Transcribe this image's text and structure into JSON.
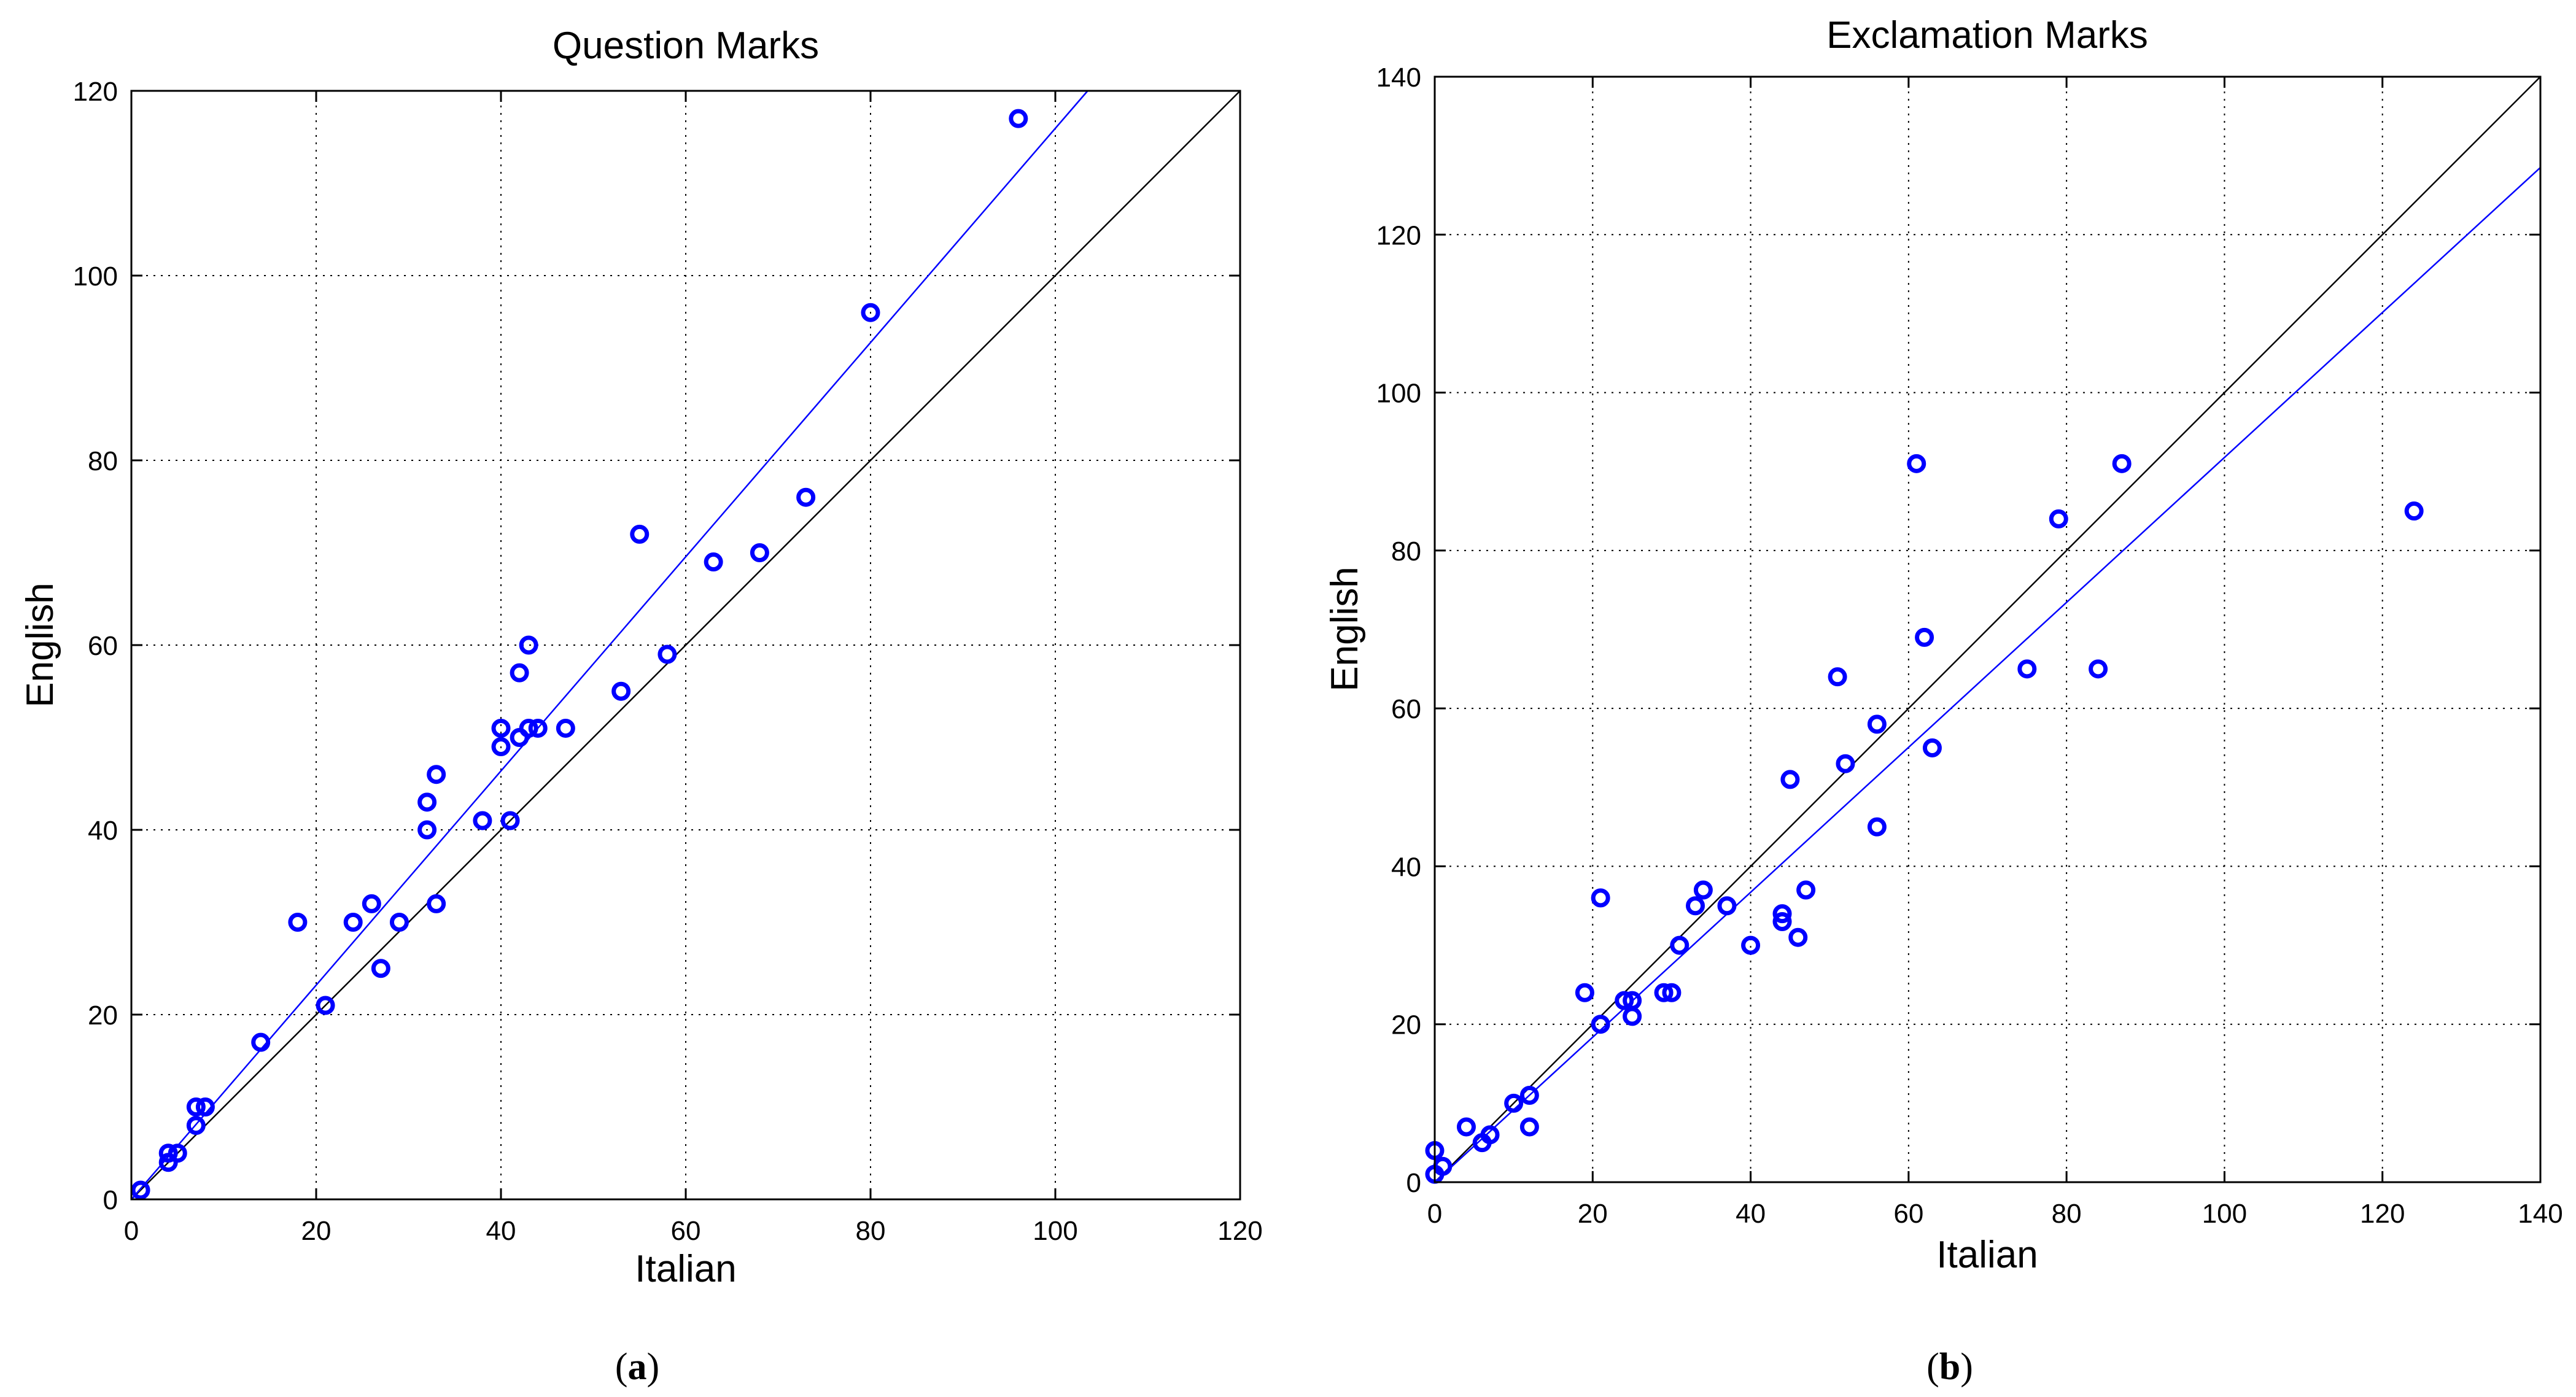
{
  "colors": {
    "points": "#0000ff",
    "fit": "#0000ff",
    "identity": "#000000"
  },
  "panels": [
    {
      "caption": {
        "open": "(",
        "letter": "a",
        "close": ")"
      },
      "chart_data": {
        "type": "scatter",
        "title": "Question Marks",
        "xlabel": "Italian",
        "ylabel": "English",
        "xlim": [
          0,
          120
        ],
        "ylim": [
          0,
          120
        ],
        "xticks": [
          0,
          20,
          40,
          60,
          80,
          100,
          120
        ],
        "yticks": [
          0,
          20,
          40,
          60,
          80,
          100,
          120
        ],
        "grid": true,
        "series": [
          {
            "name": "data",
            "marker": "circle",
            "x": [
              1,
              4,
              4,
              5,
              7,
              7,
              8,
              14,
              18,
              21,
              24,
              26,
              27,
              29,
              32,
              32,
              33,
              33,
              38,
              40,
              40,
              41,
              42,
              42,
              43,
              43,
              44,
              47,
              53,
              55,
              58,
              63,
              68,
              73,
              80,
              96
            ],
            "y": [
              1,
              4,
              5,
              5,
              8,
              10,
              10,
              17,
              30,
              21,
              30,
              32,
              25,
              30,
              40,
              43,
              46,
              32,
              41,
              49,
              51,
              41,
              50,
              57,
              51,
              60,
              51,
              51,
              55,
              72,
              59,
              69,
              70,
              76,
              96,
              117
            ]
          }
        ],
        "lines": [
          {
            "name": "identity",
            "x": [
              0,
              120
            ],
            "y": [
              0,
              120
            ]
          },
          {
            "name": "fit",
            "x": [
              0,
              103.5
            ],
            "y": [
              0,
              120
            ]
          }
        ]
      }
    },
    {
      "caption": {
        "open": "(",
        "letter": "b",
        "close": ")"
      },
      "chart_data": {
        "type": "scatter",
        "title": "Exclamation Marks",
        "xlabel": "Italian",
        "ylabel": "English",
        "xlim": [
          0,
          140
        ],
        "ylim": [
          0,
          140
        ],
        "xticks": [
          0,
          20,
          40,
          60,
          80,
          100,
          120,
          140
        ],
        "yticks": [
          0,
          20,
          40,
          60,
          80,
          100,
          120,
          140
        ],
        "grid": true,
        "series": [
          {
            "name": "data",
            "marker": "circle",
            "x": [
              0,
              0,
              1,
              4,
              6,
              7,
              10,
              12,
              12,
              19,
              21,
              21,
              24,
              25,
              25,
              29,
              30,
              31,
              33,
              34,
              37,
              40,
              44,
              44,
              45,
              46,
              47,
              51,
              52,
              56,
              56,
              61,
              62,
              63,
              75,
              79,
              84,
              87,
              124
            ],
            "y": [
              1,
              4,
              2,
              7,
              5,
              6,
              10,
              7,
              11,
              24,
              20,
              36,
              23,
              21,
              23,
              24,
              24,
              30,
              35,
              37,
              35,
              30,
              33,
              34,
              51,
              31,
              37,
              64,
              53,
              45,
              58,
              91,
              69,
              55,
              65,
              84,
              65,
              91,
              85
            ]
          }
        ],
        "lines": [
          {
            "name": "identity",
            "x": [
              0,
              140
            ],
            "y": [
              0,
              140
            ]
          },
          {
            "name": "fit",
            "x": [
              0,
              140
            ],
            "y": [
              0,
              128.5
            ]
          }
        ]
      }
    }
  ]
}
